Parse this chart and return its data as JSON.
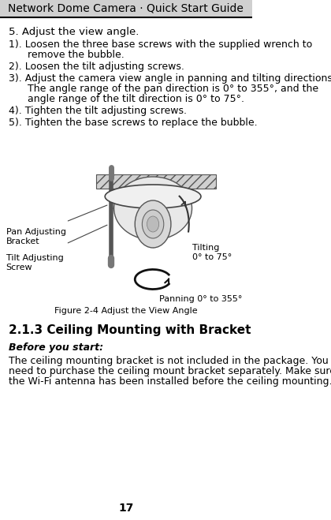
{
  "title": "Network Dome Camera · Quick Start Guide",
  "page_number": "17",
  "bg_color": "#ffffff",
  "header_bg": "#d0d0d0",
  "header_line_color": "#000000",
  "section_heading": "5. Adjust the view angle.",
  "steps": [
    "1). Loosen the three base screws with the supplied wrench to\n      remove the bubble.",
    "2). Loosen the tilt adjusting screws.",
    "3). Adjust the camera view angle in panning and tilting directions.\n      The angle range of the pan direction is 0° to 355°, and the\n      angle range of the tilt direction is 0° to 75°.",
    "4). Tighten the tilt adjusting screws.",
    "5). Tighten the base screws to replace the bubble."
  ],
  "figure_caption": "Figure 2-4 Adjust the View Angle",
  "label_pan": "Pan Adjusting\nBracket",
  "label_tilt": "Tilt Adjusting\nScrew",
  "label_tilting": "Tilting\n0° to 75°",
  "label_panning": "Panning 0° to 355°",
  "subsection_heading": "2.1.3 Ceiling Mounting with Bracket",
  "before_start_label": "Before you start:",
  "body_text": "The ceiling mounting bracket is not included in the package. You\nneed to purchase the ceiling mount bracket separately. Make sure\nthe Wi-Fi antenna has been installed before the ceiling mounting.",
  "title_fontsize": 10,
  "body_fontsize": 9,
  "step_fontsize": 9,
  "header_text_color": "#000000",
  "body_text_color": "#000000"
}
